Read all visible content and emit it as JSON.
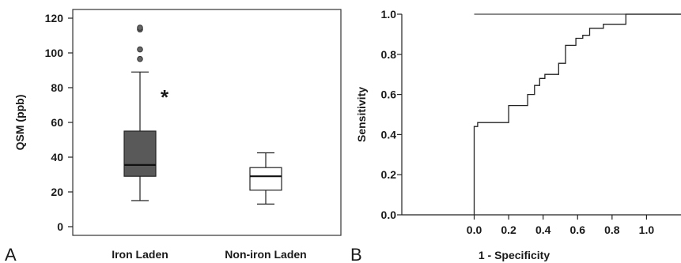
{
  "chart_data": [
    {
      "type": "box",
      "panel_label": "A",
      "xlabel": "",
      "ylabel": "QSM (ppb)",
      "ylim": [
        -5,
        125
      ],
      "yticks": [
        0,
        20,
        40,
        60,
        80,
        100,
        120
      ],
      "categories": [
        "Iron Laden",
        "Non-iron Laden"
      ],
      "boxes": [
        {
          "category": "Iron Laden",
          "whisker_low": 15,
          "q1": 29,
          "median": 35.5,
          "q3": 55,
          "whisker_high": 89,
          "outliers": [
            96.5,
            102,
            113.5,
            114.5
          ],
          "color": "#595959"
        },
        {
          "category": "Non-iron Laden",
          "whisker_low": 13,
          "q1": 21,
          "median": 29,
          "q3": 34,
          "whisker_high": 42.5,
          "outliers": [],
          "color": "#ffffff"
        }
      ],
      "annotation": "*",
      "annotation_value": 75
    },
    {
      "type": "line",
      "panel_label": "B",
      "xlabel": "1 - Specificity",
      "ylabel": "Sensitivity",
      "xlim": [
        -0.42,
        1.2
      ],
      "ylim": [
        0,
        1
      ],
      "xticks": [
        0.0,
        0.2,
        0.4,
        0.6,
        0.8,
        1.0
      ],
      "yticks": [
        0.0,
        0.2,
        0.4,
        0.6,
        0.8,
        1.0
      ],
      "tick_format": "0.0",
      "roc": [
        [
          0.0,
          0.0
        ],
        [
          0.0,
          0.44
        ],
        [
          0.02,
          0.44
        ],
        [
          0.02,
          0.46
        ],
        [
          0.2,
          0.46
        ],
        [
          0.2,
          0.545
        ],
        [
          0.31,
          0.545
        ],
        [
          0.31,
          0.6
        ],
        [
          0.35,
          0.6
        ],
        [
          0.35,
          0.645
        ],
        [
          0.38,
          0.645
        ],
        [
          0.38,
          0.68
        ],
        [
          0.41,
          0.68
        ],
        [
          0.41,
          0.7
        ],
        [
          0.49,
          0.7
        ],
        [
          0.49,
          0.755
        ],
        [
          0.53,
          0.755
        ],
        [
          0.53,
          0.845
        ],
        [
          0.59,
          0.845
        ],
        [
          0.59,
          0.88
        ],
        [
          0.63,
          0.88
        ],
        [
          0.63,
          0.895
        ],
        [
          0.67,
          0.895
        ],
        [
          0.67,
          0.93
        ],
        [
          0.75,
          0.93
        ],
        [
          0.75,
          0.95
        ],
        [
          0.88,
          0.95
        ],
        [
          0.88,
          1.0
        ],
        [
          1.2,
          1.0
        ]
      ],
      "reference_line": {
        "from": [
          0,
          1
        ],
        "to": [
          1.2,
          1
        ]
      }
    }
  ]
}
